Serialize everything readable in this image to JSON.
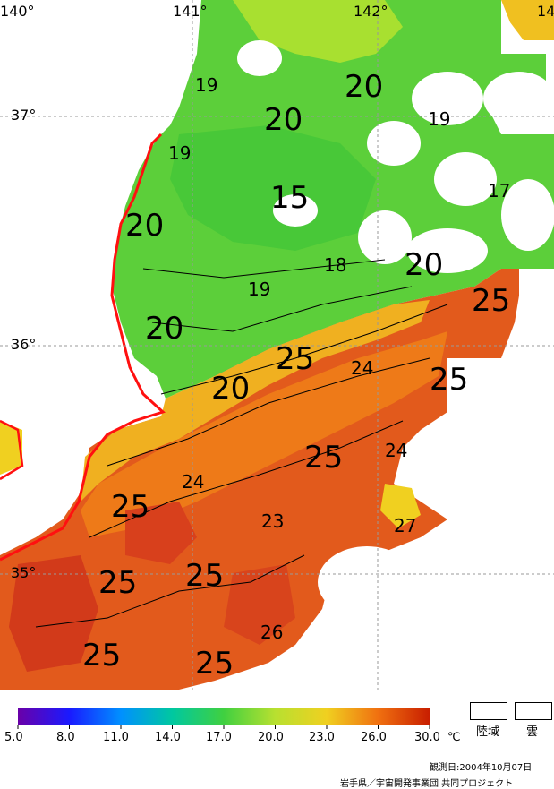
{
  "map": {
    "lon_labels": [
      "140°",
      "141°",
      "142°",
      "14"
    ],
    "lat_labels": [
      "37°",
      "36°",
      "35°"
    ],
    "contour_labels": [
      {
        "text": "19",
        "size": "s"
      },
      {
        "text": "20",
        "size": "l"
      },
      {
        "text": "20",
        "size": "l"
      },
      {
        "text": "19",
        "size": "s"
      },
      {
        "text": "19",
        "size": "s"
      },
      {
        "text": "15",
        "size": "l"
      },
      {
        "text": "17",
        "size": "s"
      },
      {
        "text": "20",
        "size": "l"
      },
      {
        "text": "18",
        "size": "s"
      },
      {
        "text": "20",
        "size": "l"
      },
      {
        "text": "19",
        "size": "s"
      },
      {
        "text": "25",
        "size": "l"
      },
      {
        "text": "20",
        "size": "l"
      },
      {
        "text": "25",
        "size": "l"
      },
      {
        "text": "24",
        "size": "s"
      },
      {
        "text": "25",
        "size": "l"
      },
      {
        "text": "20",
        "size": "l"
      },
      {
        "text": "25",
        "size": "l"
      },
      {
        "text": "24",
        "size": "s"
      },
      {
        "text": "24",
        "size": "s"
      },
      {
        "text": "25",
        "size": "l"
      },
      {
        "text": "23",
        "size": "s"
      },
      {
        "text": "27",
        "size": "s"
      },
      {
        "text": "25",
        "size": "l"
      },
      {
        "text": "25",
        "size": "l"
      },
      {
        "text": "26",
        "size": "s"
      },
      {
        "text": "25",
        "size": "l"
      },
      {
        "text": "25",
        "size": "l"
      }
    ]
  },
  "legend": {
    "ticks": [
      "5.0",
      "8.0",
      "11.0",
      "14.0",
      "17.0",
      "20.0",
      "23.0",
      "26.0",
      "30.0"
    ],
    "unit": "℃",
    "land_label": "陸域",
    "cloud_label": "雲",
    "colors": [
      "#6a00a8",
      "#1a1aff",
      "#0090ff",
      "#00c8a0",
      "#40d040",
      "#b8e030",
      "#f0d020",
      "#f07010",
      "#c81e00"
    ]
  },
  "observation_date": "観測日:2004年10月07日",
  "credit": "岩手県／宇宙開発事業団 共同プロジェクト"
}
